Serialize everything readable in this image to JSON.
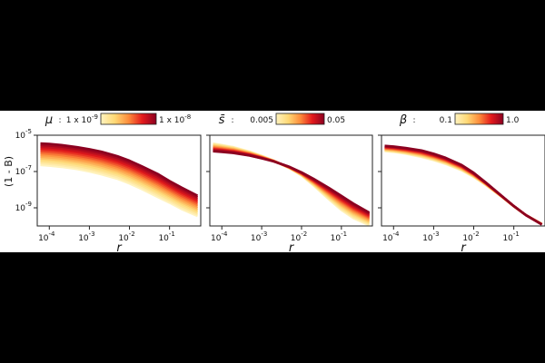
{
  "chart_data": {
    "type": "line",
    "ylabel": "(1 - B)",
    "xscale": "log",
    "yscale": "log",
    "xlim": [
      5e-05,
      0.6
    ],
    "ylim": [
      1e-10,
      1e-05
    ],
    "x": [
      6e-05,
      0.0001,
      0.0002,
      0.0005,
      0.001,
      0.002,
      0.005,
      0.01,
      0.02,
      0.05,
      0.1,
      0.2,
      0.5
    ],
    "ytick_labels": [
      "10^{-5}",
      "10^{-7}",
      "10^{-9}"
    ],
    "xtick_labels": [
      "10^{-4}",
      "10^{-3}",
      "10^{-2}",
      "10^{-1}"
    ],
    "grid": false,
    "panels": [
      {
        "xlabel": "r",
        "colorbar": {
          "symbol": "μ",
          "sep": ":",
          "min_label": "1 x 10",
          "min_exp": "-9",
          "max_label": "1 x 10",
          "max_exp": "-8",
          "low_color": "#fff5c2",
          "high_color": "#8b0020"
        },
        "series": [
          {
            "param": "low",
            "color": "#fff3bf",
            "values": [
              2.3e-07,
              2.1e-07,
              1.8e-07,
              1.35e-07,
              1e-07,
              7e-08,
              4e-08,
              2.2e-08,
              1.1e-08,
              4e-09,
              1.9e-09,
              8.5e-10,
              3.5e-10
            ]
          },
          {
            "param": "high",
            "color": "#8b0020",
            "values": [
              3.5e-06,
              3.3e-06,
              2.9e-06,
              2.2e-06,
              1.7e-06,
              1.25e-06,
              7e-07,
              4e-07,
              2e-07,
              7.5e-08,
              3e-08,
              1.3e-08,
              4.7e-09
            ]
          }
        ]
      },
      {
        "xlabel": "r",
        "colorbar": {
          "symbol": "s̄",
          "sep": ":",
          "min_label": "0.005",
          "max_label": "0.05",
          "low_color": "#fff5c2",
          "high_color": "#8b0020"
        },
        "series": [
          {
            "param": "low",
            "color": "#fff3bf",
            "values": [
              3.5e-06,
              2.9e-06,
              2.2e-06,
              1.25e-06,
              7.3e-07,
              4e-07,
              1.5e-07,
              6e-08,
              1.7e-08,
              2.8e-09,
              7.5e-10,
              2.7e-10,
              1.1e-10
            ]
          },
          {
            "param": "high",
            "color": "#8b0020",
            "values": [
              1.3e-06,
              1.2e-06,
              1.03e-06,
              7.5e-07,
              5.3e-07,
              3.6e-07,
              1.8e-07,
              9e-08,
              4e-08,
              1.2e-08,
              4.5e-09,
              1.7e-09,
              5.5e-10
            ]
          }
        ]
      },
      {
        "xlabel": "r",
        "colorbar": {
          "symbol": "β",
          "sep": ":",
          "min_label": "0.1",
          "max_label": "1.0",
          "low_color": "#fff5c2",
          "high_color": "#8b0020"
        },
        "series": [
          {
            "param": "low",
            "color": "#fff3bf",
            "values": [
              1.35e-06,
              1.2e-06,
              9.5e-07,
              6.3e-07,
              4.2e-07,
              2.6e-07,
              1.15e-07,
              5e-08,
              1.8e-08,
              4e-09,
              1.2e-09,
              4e-10,
              1.3e-10
            ]
          },
          {
            "param": "high",
            "color": "#8b0020",
            "values": [
              2.6e-06,
              2.4e-06,
              2e-06,
              1.45e-06,
              9.5e-07,
              5.7e-07,
              2.3e-07,
              8.5e-08,
              2.5e-08,
              4.5e-09,
              1.25e-09,
              4e-10,
              1.2e-10
            ]
          }
        ]
      }
    ]
  }
}
